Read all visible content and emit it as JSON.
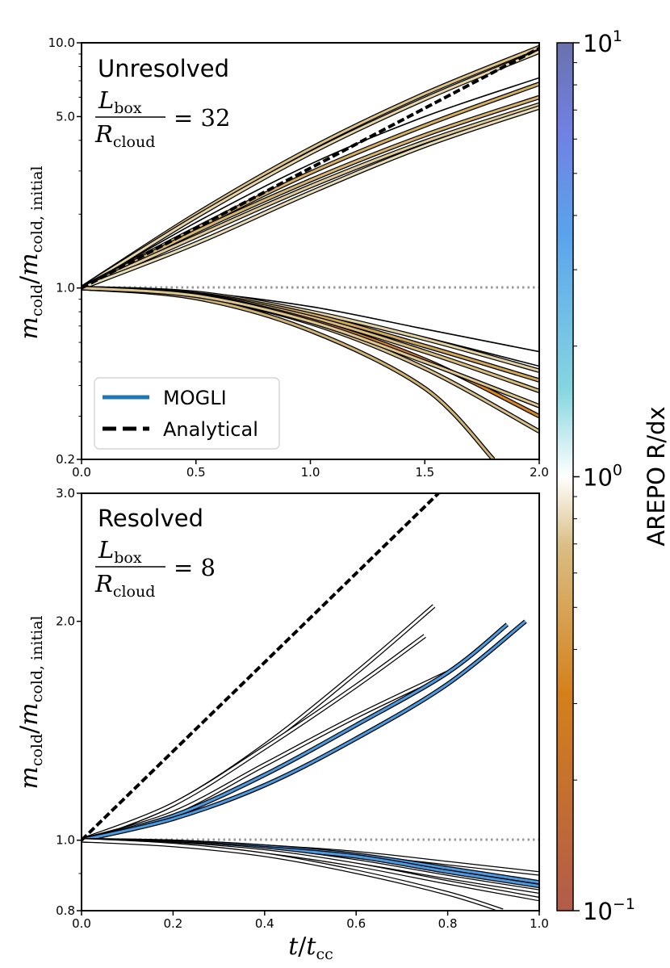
{
  "chart_data": [
    {
      "type": "line",
      "title": "Unresolved",
      "ratio_label": "= 32",
      "yscale": "log",
      "xlim": [
        0.0,
        2.0
      ],
      "ylim": [
        0.2,
        10.0
      ],
      "xticks": [
        "0.0",
        "0.5",
        "1.0",
        "1.5",
        "2.0"
      ],
      "yticks": [
        "0.2",
        "1.0",
        "5.0",
        "10.0"
      ],
      "reference_line": {
        "y": 1.0,
        "style": "dotted",
        "color": "#999999"
      },
      "analytical": {
        "x": [
          0.0,
          2.0
        ],
        "y": [
          1.0,
          9.5
        ]
      },
      "series": [
        {
          "name": "growth-1",
          "color": "#dcc383",
          "x": [
            0,
            0.5,
            1.0,
            1.5,
            2.0
          ],
          "y": [
            1.0,
            2.0,
            3.7,
            6.2,
            9.6
          ]
        },
        {
          "name": "growth-2",
          "color": "#e5d4a6",
          "x": [
            0,
            0.5,
            1.0,
            1.5,
            2.0
          ],
          "y": [
            1.0,
            1.95,
            3.55,
            5.9,
            9.2
          ]
        },
        {
          "name": "growth-3",
          "color": null,
          "x": [
            0,
            0.5,
            1.0,
            1.5,
            2.0
          ],
          "y": [
            1.0,
            1.85,
            3.2,
            5.0,
            7.2
          ]
        },
        {
          "name": "growth-4",
          "color": "#d2af5f",
          "x": [
            0,
            0.5,
            1.0,
            1.5,
            2.0
          ],
          "y": [
            1.0,
            1.75,
            2.95,
            4.6,
            6.8
          ]
        },
        {
          "name": "growth-5",
          "color": "#d5b56c",
          "x": [
            0,
            0.5,
            1.0,
            1.5,
            2.0
          ],
          "y": [
            1.0,
            1.7,
            2.75,
            4.2,
            6.0
          ]
        },
        {
          "name": "growth-6",
          "color": "#deca95",
          "x": [
            0,
            0.5,
            1.0,
            1.5,
            2.0
          ],
          "y": [
            1.0,
            1.62,
            2.6,
            3.95,
            5.6
          ]
        },
        {
          "name": "growth-7",
          "color": "#e8dcb6",
          "x": [
            0,
            0.5,
            1.0,
            1.5,
            2.0
          ],
          "y": [
            1.0,
            1.52,
            2.45,
            3.8,
            5.45
          ]
        },
        {
          "name": "decay-1",
          "color": null,
          "x": [
            0,
            0.5,
            1.0,
            1.5,
            2.0
          ],
          "y": [
            1.0,
            0.96,
            0.84,
            0.68,
            0.55
          ]
        },
        {
          "name": "decay-2",
          "color": null,
          "x": [
            0,
            0.5,
            1.0,
            1.5,
            2.0
          ],
          "y": [
            1.0,
            0.95,
            0.81,
            0.63,
            0.48
          ]
        },
        {
          "name": "decay-3",
          "color": "#e2d1a0",
          "x": [
            0,
            0.5,
            1.0,
            1.5,
            2.0
          ],
          "y": [
            1.0,
            0.955,
            0.8,
            0.62,
            0.46
          ]
        },
        {
          "name": "decay-4",
          "color": "#cfa755",
          "x": [
            0,
            0.5,
            1.0,
            1.5,
            2.0
          ],
          "y": [
            1.0,
            0.945,
            0.78,
            0.58,
            0.42
          ]
        },
        {
          "name": "decay-5",
          "color": "#d9bd7a",
          "x": [
            0,
            0.5,
            1.0,
            1.5,
            2.0
          ],
          "y": [
            1.0,
            0.94,
            0.76,
            0.55,
            0.38
          ]
        },
        {
          "name": "decay-6",
          "color": "#d8841b",
          "x": [
            0,
            0.5,
            1.0,
            1.5,
            2.0
          ],
          "y": [
            1.0,
            0.935,
            0.74,
            0.51,
            0.3
          ]
        },
        {
          "name": "decay-7",
          "color": "#d8c188",
          "x": [
            0,
            0.5,
            1.0,
            1.5,
            2.0
          ],
          "y": [
            1.0,
            0.925,
            0.72,
            0.47,
            0.26
          ]
        },
        {
          "name": "decay-8",
          "color": "#cfb372",
          "x": [
            0,
            0.5,
            1.0,
            1.5,
            1.8
          ],
          "y": [
            1.0,
            0.91,
            0.67,
            0.39,
            0.2
          ]
        },
        {
          "name": "decay-9",
          "color": "#dcc68e",
          "x": [
            0,
            0.5,
            1.0,
            1.5,
            2.0
          ],
          "y": [
            1.0,
            0.93,
            0.73,
            0.5,
            0.33
          ]
        }
      ]
    },
    {
      "type": "line",
      "title": "Resolved",
      "ratio_label": "= 8",
      "yscale": "log",
      "xlim": [
        0.0,
        1.0
      ],
      "ylim": [
        0.8,
        3.0
      ],
      "xticks": [
        "0.0",
        "0.2",
        "0.4",
        "0.6",
        "0.8",
        "1.0"
      ],
      "yticks": [
        "0.8",
        "1.0",
        "2.0",
        "3.0"
      ],
      "xlabel": "t/t_cc",
      "reference_line": {
        "y": 1.0,
        "style": "dotted",
        "color": "#999999"
      },
      "analytical": {
        "x": [
          0.0,
          0.78
        ],
        "y": [
          1.0,
          3.0
        ]
      },
      "series": [
        {
          "name": "white-1",
          "color": "#ffffff",
          "x": [
            0,
            0.2,
            0.4,
            0.6,
            0.77
          ],
          "y": [
            1.0,
            1.12,
            1.35,
            1.7,
            2.1
          ]
        },
        {
          "name": "white-2",
          "color": "#ffffff",
          "x": [
            0,
            0.2,
            0.4,
            0.6,
            0.75
          ],
          "y": [
            1.0,
            1.12,
            1.34,
            1.63,
            1.91
          ]
        },
        {
          "name": "white-3",
          "color": "#ffffff",
          "x": [
            0,
            0.2,
            0.4,
            0.6,
            0.8
          ],
          "y": [
            1.0,
            1.09,
            1.27,
            1.48,
            1.7
          ]
        },
        {
          "name": "blue-1",
          "color": "#4b9be3",
          "x": [
            0,
            0.2,
            0.4,
            0.6,
            0.8,
            0.93
          ],
          "y": [
            1.0,
            1.08,
            1.23,
            1.44,
            1.7,
            1.98
          ]
        },
        {
          "name": "blue-2",
          "color": "#4b9be3",
          "x": [
            0,
            0.2,
            0.4,
            0.6,
            0.8,
            0.97
          ],
          "y": [
            1.0,
            1.07,
            1.19,
            1.38,
            1.64,
            2.0
          ]
        },
        {
          "name": "decay-white-1",
          "color": "#ffffff",
          "x": [
            0,
            0.2,
            0.4,
            0.6,
            0.8,
            1.0
          ],
          "y": [
            1.0,
            0.995,
            0.98,
            0.96,
            0.93,
            0.9
          ]
        },
        {
          "name": "decay-blue-1",
          "color": "#4b9be3",
          "x": [
            0,
            0.2,
            0.4,
            0.6,
            0.8,
            1.0
          ],
          "y": [
            1.0,
            0.995,
            0.98,
            0.955,
            0.915,
            0.875
          ]
        },
        {
          "name": "decay-blue-2",
          "color": "#4b9be3",
          "x": [
            0,
            0.2,
            0.4,
            0.6,
            0.8,
            1.0
          ],
          "y": [
            1.0,
            0.993,
            0.975,
            0.95,
            0.905,
            0.865
          ]
        },
        {
          "name": "decay-white-2",
          "color": "#ffffff",
          "x": [
            0,
            0.2,
            0.4,
            0.6,
            0.8,
            1.0
          ],
          "y": [
            1.0,
            0.99,
            0.97,
            0.935,
            0.89,
            0.85
          ]
        },
        {
          "name": "decay-white-3",
          "color": "#ffffff",
          "x": [
            0,
            0.2,
            0.4,
            0.6,
            0.8,
            1.0
          ],
          "y": [
            1.0,
            0.988,
            0.965,
            0.925,
            0.875,
            0.83
          ]
        },
        {
          "name": "decay-white-4",
          "color": "#ffffff",
          "x": [
            0,
            0.2,
            0.4,
            0.6,
            0.8,
            0.92
          ],
          "y": [
            1.0,
            0.985,
            0.955,
            0.905,
            0.845,
            0.8
          ]
        }
      ]
    }
  ],
  "legend": {
    "mogli": "MOGLI",
    "analytical": "Analytical",
    "mogli_color": "#1f77b4"
  },
  "colorbar": {
    "label": "AREPO R/dx",
    "scale": "log",
    "range": [
      0.1,
      10
    ],
    "tick_mantissa": "10",
    "ticks": [
      {
        "exp": "1"
      },
      {
        "exp": "0"
      },
      {
        "exp": "−1"
      }
    ],
    "stops": [
      "#b25b4b",
      "#d4801a",
      "#d9be84",
      "#ffffff",
      "#86d6e0",
      "#5aa3ec",
      "#7180e2",
      "#6a72ad"
    ]
  },
  "labels": {
    "ylabel_main": "m",
    "ylabel_sub1": "cold",
    "ylabel_sep": "/",
    "ylabel_sub2": "cold, initial",
    "ratio_num_main": "L",
    "ratio_num_sub": "box",
    "ratio_den_main": "R",
    "ratio_den_sub": "cloud",
    "xlabel_main": "t",
    "xlabel_sep": "/",
    "xlabel_sub": "cc"
  }
}
